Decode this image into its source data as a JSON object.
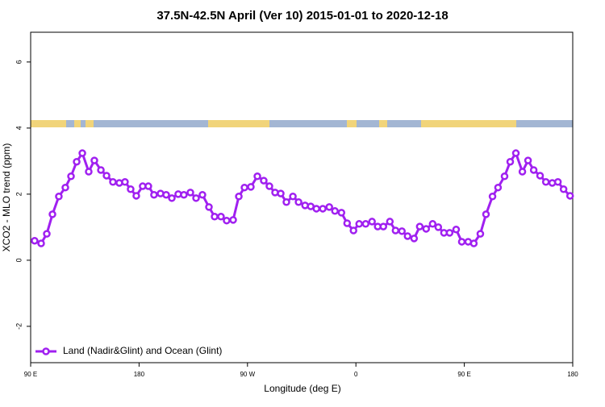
{
  "chart_data": {
    "type": "line",
    "title": "37.5N-42.5N April (Ver 10)   2015-01-01 to 2020-12-18",
    "x_label": "Longitude (deg E)",
    "y_label": "XCO2 - MLO trend (ppm)",
    "xlim": [
      90,
      540
    ],
    "ylim": [
      -3.1,
      6.9
    ],
    "xticks": [
      {
        "value": 90,
        "label": "90 E"
      },
      180,
      {
        "value": 270,
        "label": "90 W"
      },
      {
        "value": 360,
        "label": "0"
      },
      {
        "value": 450,
        "label": "90 E"
      },
      {
        "value": 540,
        "label": "180"
      }
    ],
    "yticks": [
      -2,
      0,
      2,
      4,
      6
    ],
    "legend_position": "bottom-left",
    "series": [
      {
        "name": "Land (Nadir&Glint) and Ocean (Glint)",
        "color": "#a020f0",
        "x": [
          93.3,
          98.7,
          103.4,
          108.1,
          113.4,
          118.8,
          123.5,
          128.2,
          132.9,
          138.2,
          142.9,
          148.3,
          153,
          158.3,
          163.6,
          168.3,
          173,
          177.7,
          183,
          187.7,
          192.4,
          197.8,
          202.5,
          207.2,
          212.5,
          217.2,
          222.6,
          227.3,
          232.6,
          238,
          242.7,
          248,
          252.7,
          258.1,
          262.8,
          267.5,
          272.8,
          278.2,
          283.5,
          288.2,
          292.9,
          297.6,
          302.3,
          307.7,
          312.4,
          317.8,
          322.5,
          327.2,
          332.5,
          337.9,
          342.6,
          348,
          352.7,
          358,
          362.7,
          368.1,
          373.4,
          378.1,
          382.8,
          388.2,
          392.9,
          398.2,
          402.9,
          408.3,
          413,
          418.3,
          423.7,
          428.4,
          433.1,
          437.8,
          443.2,
          447.9,
          453.2,
          457.9,
          463.3,
          468,
          473.4,
          478,
          483.4,
          488.1,
          492.8,
          498.2,
          502.9,
          507.6,
          512.9,
          517.7,
          523,
          527.7,
          532.4,
          537.8
        ],
        "values": [
          0.59,
          0.51,
          0.8,
          1.39,
          1.93,
          2.2,
          2.54,
          2.98,
          3.24,
          2.68,
          3.02,
          2.73,
          2.56,
          2.37,
          2.34,
          2.37,
          2.15,
          1.95,
          2.24,
          2.24,
          1.98,
          2.02,
          1.98,
          1.88,
          2,
          1.98,
          2.05,
          1.88,
          1.98,
          1.61,
          1.32,
          1.32,
          1.2,
          1.22,
          1.93,
          2.2,
          2.22,
          2.54,
          2.41,
          2.24,
          2.05,
          2.02,
          1.76,
          1.93,
          1.76,
          1.66,
          1.63,
          1.56,
          1.56,
          1.61,
          1.49,
          1.44,
          1.12,
          0.9,
          1.1,
          1.1,
          1.17,
          1.02,
          1.02,
          1.17,
          0.9,
          0.88,
          0.73,
          0.66,
          1.02,
          0.95,
          1.1,
          1,
          0.83,
          0.83,
          0.93,
          0.56,
          0.56,
          0.51,
          0.8,
          1.39,
          1.93,
          2.2,
          2.54,
          2.98,
          3.24,
          2.68,
          3.02,
          2.73,
          2.56,
          2.37,
          2.34,
          2.37,
          2.15,
          1.95
        ]
      }
    ]
  }
}
